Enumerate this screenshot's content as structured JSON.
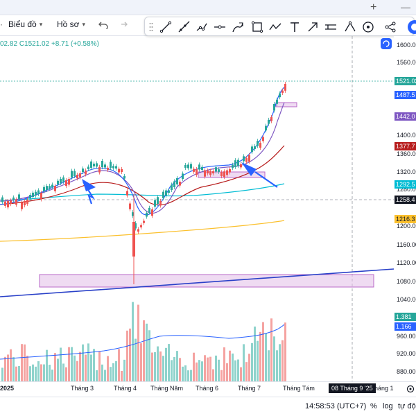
{
  "tabs_bar": {
    "plus": "+",
    "minimize": "—"
  },
  "toolbar": {
    "chart_menu": "Biểu đồ",
    "profile_menu": "Hồ sơ"
  },
  "drawing_tools": [
    "trend-line-icon",
    "ray-icon",
    "channel-icon",
    "horizontal-ray-icon",
    "brush-icon",
    "rectangle-icon",
    "path-icon",
    "text-icon",
    "arrow-icon",
    "ruler-icon",
    "pattern-icon",
    "emoji-icon",
    "share-icon"
  ],
  "ohlc": {
    "prefix": "02.82",
    "close": "C1521.02",
    "change": "+8.71 (+0.58%)"
  },
  "price_axis": {
    "ticks": [
      "1600.00",
      "1560.00",
      "1400.00",
      "1360.00",
      "1320.00",
      "1280.00",
      "1200.00",
      "1160.00",
      "1120.00",
      "1080.00",
      "1040.00",
      "960.00",
      "920.00",
      "880.00"
    ],
    "tags": [
      {
        "label": "1521.02",
        "color": "#26a69a"
      },
      {
        "label": "1487.5",
        "color": "#2962ff"
      },
      {
        "label": "1442.0",
        "color": "#7e57c2"
      },
      {
        "label": "1377.7",
        "color": "#b71c1c"
      },
      {
        "label": "1292.5",
        "color": "#00bcd4"
      },
      {
        "label": "1258.4",
        "color": "#131722"
      },
      {
        "label": "1216.3",
        "color": "#fbc02d"
      },
      {
        "label": "1.381",
        "color": "#26a69a"
      },
      {
        "label": "1.166",
        "color": "#2962ff"
      }
    ]
  },
  "time_axis": {
    "year": "2025",
    "months": [
      "Tháng 3",
      "Tháng 4",
      "Tháng Năm",
      "Tháng 6",
      "Tháng 7",
      "Tháng Tám",
      "háng 1"
    ],
    "crosshair_date": "08 Tháng 9 '25"
  },
  "status": {
    "clock": "14:58:53 (UTC+7)",
    "percent": "%",
    "log": "log",
    "auto": "tự động"
  },
  "colors": {
    "up": "#26a69a",
    "down": "#ef5350",
    "ma_blue": "#2962ff",
    "ma_purple": "#7e57c2",
    "ma_red": "#b71c1c",
    "ma_teal": "#00bcd4",
    "ma_yellow": "#fbc02d",
    "zone": "#e1bee7"
  }
}
